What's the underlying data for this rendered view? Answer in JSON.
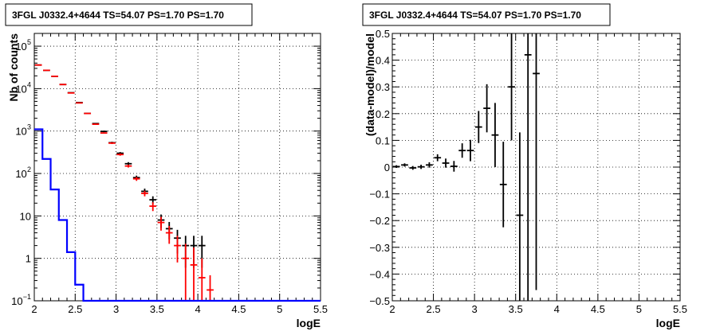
{
  "chart_data": [
    {
      "type": "line",
      "title": "3FGL J0332.4+4644 TS=54.07 PS=1.70 PS=1.70",
      "xlabel": "logE",
      "ylabel": "Nb of counts",
      "xlim": [
        2,
        5.5
      ],
      "ylim": [
        0.1,
        200000
      ],
      "yscale": "log",
      "grid": true,
      "xticks": [
        "2",
        "2.5",
        "3",
        "3.5",
        "4",
        "4.5",
        "5",
        "5.5"
      ],
      "yticks": [
        {
          "value": 0.1,
          "base": "10",
          "exp": "−1"
        },
        {
          "value": 1,
          "base": "1",
          "exp": ""
        },
        {
          "value": 10,
          "base": "10",
          "exp": ""
        },
        {
          "value": 100,
          "base": "10",
          "exp": "2"
        },
        {
          "value": 1000,
          "base": "10",
          "exp": "3"
        },
        {
          "value": 10000,
          "base": "10",
          "exp": "4"
        },
        {
          "value": 100000,
          "base": "10",
          "exp": "5"
        }
      ],
      "bin_width": 0.1,
      "series": [
        {
          "color": "#000000",
          "style": "errorbar",
          "points": [
            {
              "x": 2.05,
              "y": 36000,
              "ylo": 35800,
              "yhi": 36200
            },
            {
              "x": 2.15,
              "y": 27000,
              "ylo": 26800,
              "yhi": 27200
            },
            {
              "x": 2.25,
              "y": 19500,
              "ylo": 19300,
              "yhi": 19700
            },
            {
              "x": 2.35,
              "y": 12500,
              "ylo": 12350,
              "yhi": 12650
            },
            {
              "x": 2.45,
              "y": 8000,
              "ylo": 7900,
              "yhi": 8100
            },
            {
              "x": 2.55,
              "y": 4700,
              "ylo": 4600,
              "yhi": 4800
            },
            {
              "x": 2.65,
              "y": 2600,
              "ylo": 2540,
              "yhi": 2660
            },
            {
              "x": 2.75,
              "y": 1500,
              "ylo": 1460,
              "yhi": 1540
            },
            {
              "x": 2.85,
              "y": 980,
              "ylo": 940,
              "yhi": 1020
            },
            {
              "x": 2.95,
              "y": 530,
              "ylo": 500,
              "yhi": 560
            },
            {
              "x": 3.05,
              "y": 300,
              "ylo": 280,
              "yhi": 320
            },
            {
              "x": 3.15,
              "y": 170,
              "ylo": 155,
              "yhi": 185
            },
            {
              "x": 3.25,
              "y": 80,
              "ylo": 71,
              "yhi": 89
            },
            {
              "x": 3.35,
              "y": 38,
              "ylo": 32,
              "yhi": 44
            },
            {
              "x": 3.45,
              "y": 24,
              "ylo": 19,
              "yhi": 29
            },
            {
              "x": 3.55,
              "y": 8,
              "ylo": 5.2,
              "yhi": 10.8
            },
            {
              "x": 3.65,
              "y": 5,
              "ylo": 2.8,
              "yhi": 7.2
            },
            {
              "x": 3.75,
              "y": 3,
              "ylo": 1.3,
              "yhi": 4.7
            },
            {
              "x": 3.85,
              "y": 2,
              "ylo": 0.6,
              "yhi": 3.4
            },
            {
              "x": 3.95,
              "y": 2,
              "ylo": 0.6,
              "yhi": 3.4
            },
            {
              "x": 4.05,
              "y": 2,
              "ylo": 0.6,
              "yhi": 3.4
            }
          ]
        },
        {
          "color": "#ff0000",
          "style": "errorbar",
          "points": [
            {
              "x": 2.05,
              "y": 36000,
              "ylo": 35800,
              "yhi": 36200
            },
            {
              "x": 2.15,
              "y": 27000,
              "ylo": 26800,
              "yhi": 27200
            },
            {
              "x": 2.25,
              "y": 19500,
              "ylo": 19300,
              "yhi": 19700
            },
            {
              "x": 2.35,
              "y": 12500,
              "ylo": 12350,
              "yhi": 12650
            },
            {
              "x": 2.45,
              "y": 7900,
              "ylo": 7800,
              "yhi": 8000
            },
            {
              "x": 2.55,
              "y": 4600,
              "ylo": 4520,
              "yhi": 4680
            },
            {
              "x": 2.65,
              "y": 2600,
              "ylo": 2540,
              "yhi": 2660
            },
            {
              "x": 2.75,
              "y": 1450,
              "ylo": 1410,
              "yhi": 1490
            },
            {
              "x": 2.85,
              "y": 900,
              "ylo": 870,
              "yhi": 930
            },
            {
              "x": 2.95,
              "y": 520,
              "ylo": 495,
              "yhi": 545
            },
            {
              "x": 3.05,
              "y": 280,
              "ylo": 262,
              "yhi": 298
            },
            {
              "x": 3.15,
              "y": 150,
              "ylo": 138,
              "yhi": 162
            },
            {
              "x": 3.25,
              "y": 75,
              "ylo": 67,
              "yhi": 83
            },
            {
              "x": 3.35,
              "y": 34,
              "ylo": 29,
              "yhi": 39
            },
            {
              "x": 3.45,
              "y": 17,
              "ylo": 13,
              "yhi": 21
            },
            {
              "x": 3.55,
              "y": 7,
              "ylo": 4.5,
              "yhi": 9.5
            },
            {
              "x": 3.65,
              "y": 4,
              "ylo": 2.2,
              "yhi": 5.8
            },
            {
              "x": 3.75,
              "y": 2,
              "ylo": 0.8,
              "yhi": 3.4
            },
            {
              "x": 3.85,
              "y": 1,
              "ylo": 0.1,
              "yhi": 2.2
            },
            {
              "x": 3.95,
              "y": 0.7,
              "ylo": 0.1,
              "yhi": 1.8
            },
            {
              "x": 4.05,
              "y": 0.35,
              "ylo": 0.1,
              "yhi": 1.0
            },
            {
              "x": 4.15,
              "y": 0.18,
              "ylo": 0.1,
              "yhi": 0.4
            }
          ]
        },
        {
          "color": "#0000ff",
          "style": "step",
          "bins": [
            {
              "x0": 2.0,
              "x1": 2.1,
              "y": 1100
            },
            {
              "x0": 2.1,
              "x1": 2.2,
              "y": 220
            },
            {
              "x0": 2.2,
              "x1": 2.3,
              "y": 42
            },
            {
              "x0": 2.3,
              "x1": 2.4,
              "y": 8
            },
            {
              "x0": 2.4,
              "x1": 2.5,
              "y": 1.4
            },
            {
              "x0": 2.5,
              "x1": 2.6,
              "y": 0.24
            },
            {
              "x0": 2.6,
              "x1": 5.5,
              "y": 0.1
            }
          ]
        }
      ]
    },
    {
      "type": "scatter",
      "title": "3FGL J0332.4+4644 TS=54.07 PS=1.70 PS=1.70",
      "xlabel": "logE",
      "ylabel": "(data-model)/model",
      "xlim": [
        2,
        5.5
      ],
      "ylim": [
        -0.5,
        0.5
      ],
      "yscale": "linear",
      "grid": true,
      "xticks": [
        "2",
        "2.5",
        "3",
        "3.5",
        "4",
        "4.5",
        "5",
        "5.5"
      ],
      "yticks": [
        "−0.5",
        "−0.4",
        "−0.3",
        "−0.2",
        "−0.1",
        "0",
        "0.1",
        "0.2",
        "0.3",
        "0.4",
        "0.5"
      ],
      "bin_width": 0.1,
      "series": [
        {
          "color": "#000000",
          "style": "errorbar",
          "points": [
            {
              "x": 2.05,
              "y": 0.002,
              "ylo": -0.003,
              "yhi": 0.007
            },
            {
              "x": 2.15,
              "y": 0.008,
              "ylo": 0.002,
              "yhi": 0.014
            },
            {
              "x": 2.25,
              "y": -0.003,
              "ylo": -0.01,
              "yhi": 0.004
            },
            {
              "x": 2.35,
              "y": 0.001,
              "ylo": -0.007,
              "yhi": 0.009
            },
            {
              "x": 2.45,
              "y": 0.008,
              "ylo": -0.002,
              "yhi": 0.018
            },
            {
              "x": 2.55,
              "y": 0.035,
              "ylo": 0.022,
              "yhi": 0.048
            },
            {
              "x": 2.65,
              "y": 0.015,
              "ylo": -0.002,
              "yhi": 0.032
            },
            {
              "x": 2.75,
              "y": 0.003,
              "ylo": -0.017,
              "yhi": 0.023
            },
            {
              "x": 2.85,
              "y": 0.062,
              "ylo": 0.035,
              "yhi": 0.089
            },
            {
              "x": 2.95,
              "y": 0.062,
              "ylo": 0.022,
              "yhi": 0.102
            },
            {
              "x": 3.05,
              "y": 0.15,
              "ylo": 0.09,
              "yhi": 0.21
            },
            {
              "x": 3.15,
              "y": 0.22,
              "ylo": 0.13,
              "yhi": 0.31
            },
            {
              "x": 3.25,
              "y": 0.12,
              "ylo": 0.0,
              "yhi": 0.24
            },
            {
              "x": 3.35,
              "y": -0.065,
              "ylo": -0.225,
              "yhi": 0.095
            },
            {
              "x": 3.45,
              "y": 0.3,
              "ylo": 0.1,
              "yhi": 0.5
            },
            {
              "x": 3.55,
              "y": -0.18,
              "ylo": -0.5,
              "yhi": 0.13
            },
            {
              "x": 3.65,
              "y": 0.42,
              "ylo": -0.5,
              "yhi": 0.5
            },
            {
              "x": 3.75,
              "y": 0.35,
              "ylo": -0.46,
              "yhi": 0.5
            }
          ]
        }
      ]
    }
  ]
}
